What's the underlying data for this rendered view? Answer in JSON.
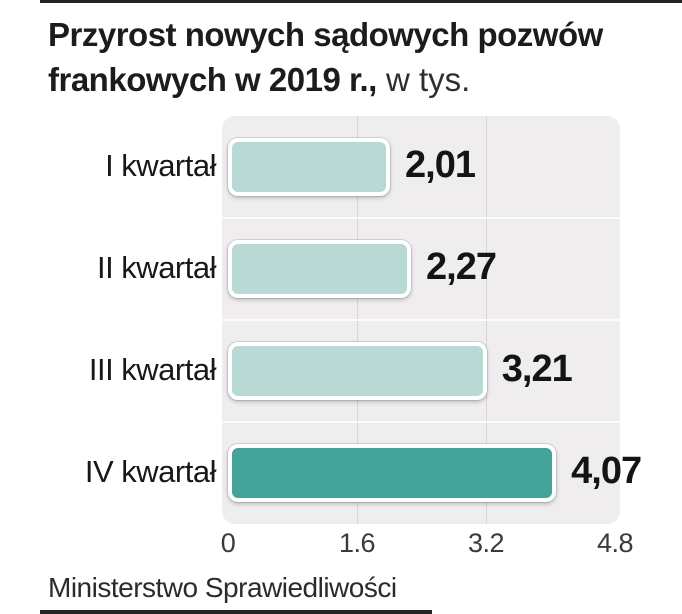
{
  "page": {
    "title_line1": "Przyrost nowych sądowych pozwów",
    "title_line2_bold": "frankowych w 2019 r.,",
    "title_unit": " w tys.",
    "source": "Ministerstwo Sprawiedliwości"
  },
  "colors": {
    "bar_light": "#b8d9d4",
    "bar_highlight": "#43a398",
    "plot_bg": "#efedee",
    "grid": "#d8d4d7",
    "rule": "#242424"
  },
  "chart_data": {
    "type": "bar",
    "orientation": "horizontal",
    "title": "Przyrost nowych sądowych pozwów frankowych w 2019 r.",
    "unit": "w tys.",
    "source": "Ministerstwo Sprawiedliwości",
    "categories": [
      "I kwartał",
      "II kwartał",
      "III kwartał",
      "IV kwartał"
    ],
    "values": [
      2.01,
      2.27,
      3.21,
      4.07
    ],
    "value_labels": [
      "2,01",
      "2,27",
      "3,21",
      "4,07"
    ],
    "highlight_index": 3,
    "x_ticks": [
      0,
      1.6,
      3.2,
      4.8
    ],
    "x_tick_labels": [
      "0",
      "1.6",
      "3.2",
      "4.8"
    ],
    "xlim": [
      0,
      4.8
    ],
    "grid": true,
    "legend": false
  }
}
